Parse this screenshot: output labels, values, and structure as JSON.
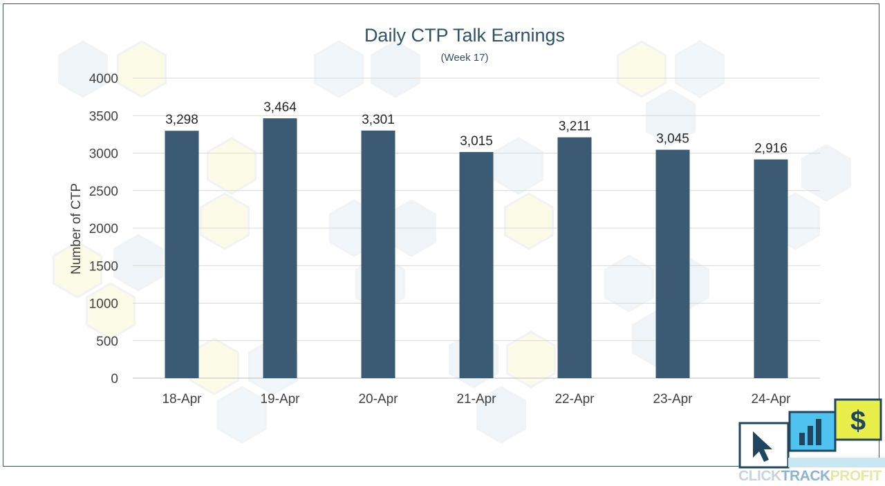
{
  "chart_data": {
    "type": "bar",
    "title": "Daily CTP Talk Earnings",
    "subtitle": "(Week 17)",
    "xlabel": "",
    "ylabel": "Number of CTP",
    "categories": [
      "18-Apr",
      "19-Apr",
      "20-Apr",
      "21-Apr",
      "22-Apr",
      "23-Apr",
      "24-Apr"
    ],
    "values": [
      3298,
      3464,
      3301,
      3015,
      3211,
      3045,
      2916
    ],
    "data_labels": [
      "3,298",
      "3,464",
      "3,301",
      "3,015",
      "3,211",
      "3,045",
      "2,916"
    ],
    "ylim": [
      0,
      4000
    ],
    "yticks": [
      0,
      500,
      1000,
      1500,
      2000,
      2500,
      3000,
      3500,
      4000
    ],
    "grid": true,
    "legend": "none",
    "bar_color": "#3a5b73"
  },
  "logo": {
    "word1": "CLICK",
    "word2": "TRACK",
    "word3": "PROFIT",
    "icons": [
      "cursor-icon",
      "bar-chart-icon",
      "dollar-icon"
    ],
    "colors": {
      "light_blue": "#4fc3f0",
      "yellow": "#e8ef4a",
      "navy": "#1f4560"
    }
  }
}
